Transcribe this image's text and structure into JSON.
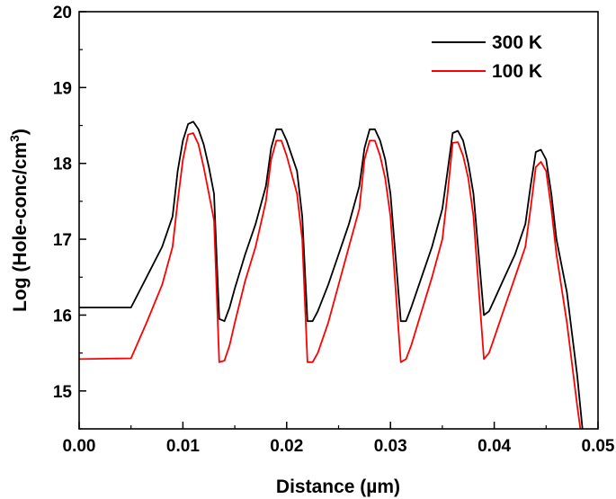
{
  "chart_data": {
    "type": "line",
    "xlabel": "Distance (µm)",
    "ylabel_main": "Log (Hole-conc/cm",
    "ylabel_sup": "3",
    "ylabel_end": ")",
    "xlim": [
      0.0,
      0.05
    ],
    "ylim": [
      14.5,
      20.0
    ],
    "xticks": [
      "0.00",
      "0.01",
      "0.02",
      "0.03",
      "0.04",
      "0.05"
    ],
    "xtick_values": [
      0.0,
      0.01,
      0.02,
      0.03,
      0.04,
      0.05
    ],
    "yticks": [
      "15",
      "16",
      "17",
      "18",
      "19",
      "20"
    ],
    "ytick_values": [
      15,
      16,
      17,
      18,
      19,
      20
    ],
    "grid": false,
    "legend_position": "top-right",
    "series": [
      {
        "name": "300 K",
        "color": "#000000",
        "x": [
          0.0,
          0.005,
          0.0065,
          0.008,
          0.009,
          0.0095,
          0.01,
          0.0105,
          0.011,
          0.0115,
          0.012,
          0.0125,
          0.013,
          0.0135,
          0.014,
          0.0145,
          0.015,
          0.016,
          0.017,
          0.018,
          0.0185,
          0.019,
          0.0195,
          0.02,
          0.021,
          0.0215,
          0.022,
          0.0225,
          0.023,
          0.024,
          0.025,
          0.026,
          0.027,
          0.0275,
          0.028,
          0.0285,
          0.029,
          0.0295,
          0.03,
          0.031,
          0.0315,
          0.032,
          0.033,
          0.034,
          0.035,
          0.0355,
          0.036,
          0.0365,
          0.037,
          0.0375,
          0.038,
          0.039,
          0.0395,
          0.04,
          0.041,
          0.042,
          0.043,
          0.0435,
          0.044,
          0.0445,
          0.045,
          0.0455,
          0.046,
          0.047,
          0.048,
          0.0485,
          0.049
        ],
        "y": [
          16.1,
          16.1,
          16.5,
          16.9,
          17.3,
          17.9,
          18.3,
          18.52,
          18.55,
          18.45,
          18.25,
          17.95,
          17.6,
          15.95,
          15.92,
          16.1,
          16.35,
          16.8,
          17.2,
          17.7,
          18.2,
          18.45,
          18.45,
          18.3,
          17.9,
          17.3,
          15.92,
          15.92,
          16.05,
          16.4,
          16.8,
          17.2,
          17.7,
          18.2,
          18.45,
          18.45,
          18.3,
          18.05,
          17.6,
          15.92,
          15.92,
          16.1,
          16.5,
          16.9,
          17.4,
          17.9,
          18.4,
          18.43,
          18.3,
          18.0,
          17.6,
          16.0,
          16.05,
          16.2,
          16.5,
          16.8,
          17.2,
          17.7,
          18.15,
          18.18,
          18.05,
          17.6,
          17.0,
          16.3,
          15.2,
          14.5,
          14.3
        ]
      },
      {
        "name": "100 K",
        "color": "#ff0000",
        "x": [
          0.0,
          0.005,
          0.0065,
          0.008,
          0.009,
          0.0095,
          0.01,
          0.0105,
          0.011,
          0.0115,
          0.012,
          0.0125,
          0.013,
          0.0135,
          0.014,
          0.0145,
          0.015,
          0.016,
          0.017,
          0.018,
          0.0185,
          0.019,
          0.0195,
          0.02,
          0.021,
          0.0215,
          0.022,
          0.0225,
          0.023,
          0.024,
          0.025,
          0.026,
          0.027,
          0.0275,
          0.028,
          0.0285,
          0.029,
          0.0295,
          0.03,
          0.031,
          0.0315,
          0.032,
          0.033,
          0.034,
          0.035,
          0.0355,
          0.036,
          0.0365,
          0.037,
          0.0375,
          0.038,
          0.039,
          0.0395,
          0.04,
          0.041,
          0.042,
          0.043,
          0.0435,
          0.044,
          0.0445,
          0.045,
          0.0455,
          0.046,
          0.047,
          0.048,
          0.0485,
          0.049
        ],
        "y": [
          15.42,
          15.43,
          15.9,
          16.4,
          16.9,
          17.5,
          18.05,
          18.38,
          18.4,
          18.25,
          17.95,
          17.6,
          17.25,
          15.38,
          15.4,
          15.6,
          15.9,
          16.45,
          16.9,
          17.5,
          18.05,
          18.3,
          18.3,
          18.1,
          17.6,
          17.0,
          15.38,
          15.38,
          15.5,
          15.9,
          16.4,
          16.9,
          17.4,
          18.05,
          18.3,
          18.3,
          18.1,
          17.8,
          17.3,
          15.38,
          15.42,
          15.6,
          16.05,
          16.5,
          17.0,
          17.6,
          18.27,
          18.28,
          18.1,
          17.8,
          17.3,
          15.42,
          15.5,
          15.7,
          16.1,
          16.5,
          16.9,
          17.4,
          17.95,
          18.02,
          17.9,
          17.4,
          16.8,
          15.9,
          14.8,
          14.3,
          14.2
        ]
      }
    ]
  }
}
